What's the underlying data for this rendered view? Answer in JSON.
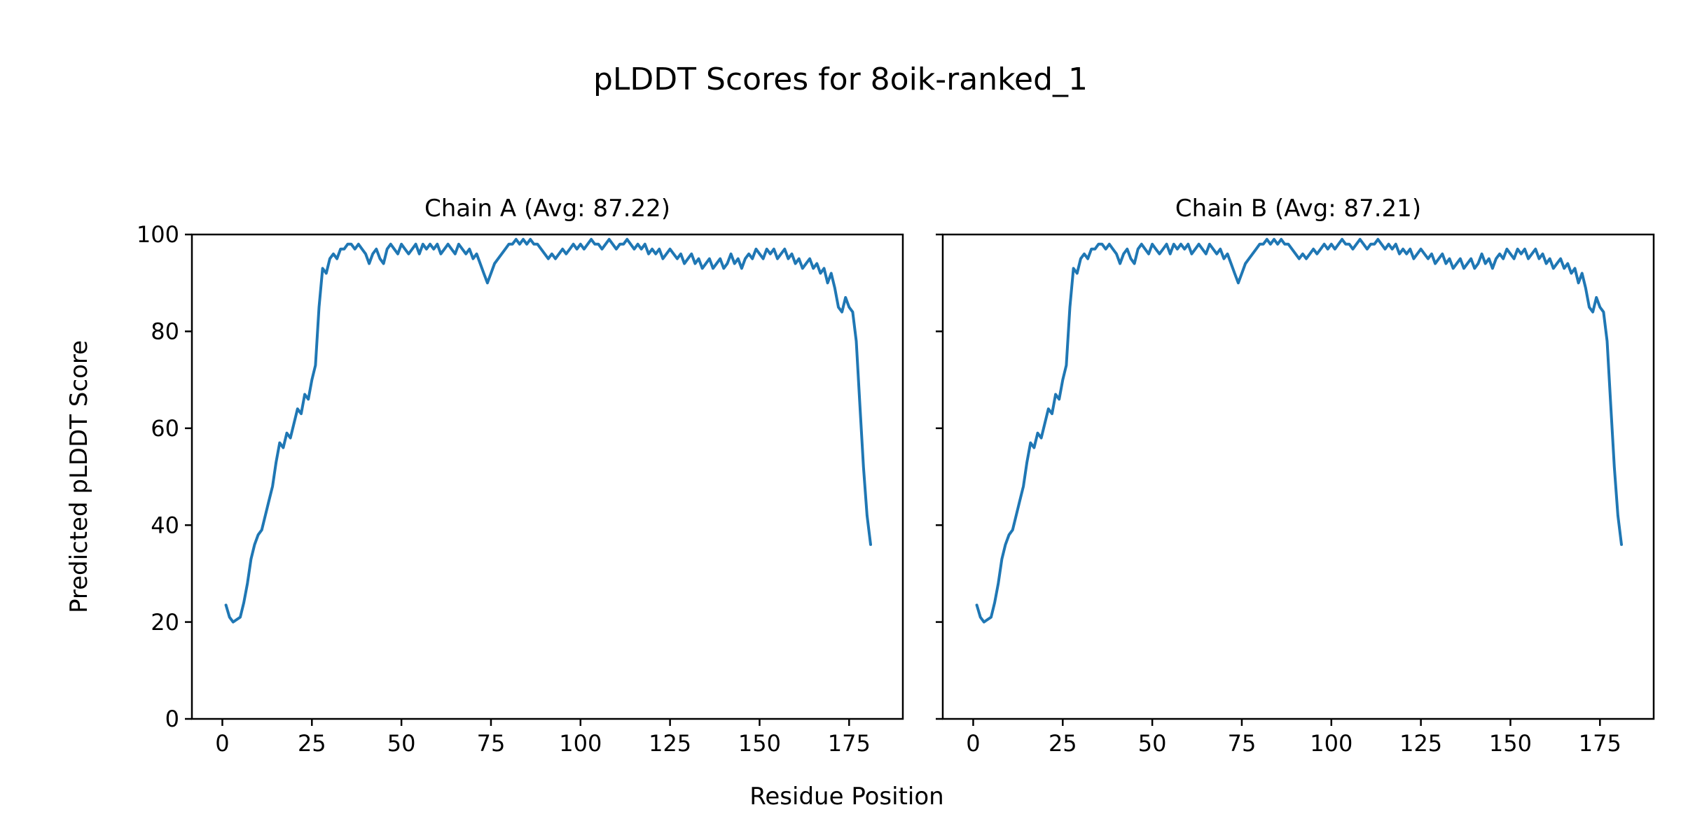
{
  "chart_data": {
    "type": "line",
    "title": "pLDDT Scores for 8oik-ranked_1",
    "xlabel": "Residue Position",
    "ylabel": "Predicted pLDDT Score",
    "xlim": [
      -8.5,
      190
    ],
    "ylim": [
      0,
      100
    ],
    "xticks": [
      0,
      25,
      50,
      75,
      100,
      125,
      150,
      175
    ],
    "yticks": [
      0,
      20,
      40,
      60,
      80,
      100
    ],
    "grid": false,
    "legend": "none",
    "line_color": "#1f77b4",
    "x_start": 1,
    "subplots": [
      {
        "title": "Chain A (Avg: 87.22)",
        "avg": 87.22,
        "show_ytick_labels": true,
        "values": [
          23.5,
          21,
          20,
          20.5,
          21,
          24,
          28,
          33,
          36,
          38,
          39,
          42,
          45,
          48,
          53,
          57,
          56,
          59,
          58,
          61,
          64,
          63,
          67,
          66,
          70,
          73,
          85,
          93,
          92,
          95,
          96,
          95,
          97,
          97,
          98,
          98,
          97,
          98,
          97,
          96,
          94,
          96,
          97,
          95,
          94,
          97,
          98,
          97,
          96,
          98,
          97,
          96,
          97,
          98,
          96,
          98,
          97,
          98,
          97,
          98,
          96,
          97,
          98,
          97,
          96,
          98,
          97,
          96,
          97,
          95,
          96,
          94,
          92,
          90,
          92,
          94,
          95,
          96,
          97,
          98,
          98,
          99,
          98,
          99,
          98,
          99,
          98,
          98,
          97,
          96,
          95,
          96,
          95,
          96,
          97,
          96,
          97,
          98,
          97,
          98,
          97,
          98,
          99,
          98,
          98,
          97,
          98,
          99,
          98,
          97,
          98,
          98,
          99,
          98,
          97,
          98,
          97,
          98,
          96,
          97,
          96,
          97,
          95,
          96,
          97,
          96,
          95,
          96,
          94,
          95,
          96,
          94,
          95,
          93,
          94,
          95,
          93,
          94,
          95,
          93,
          94,
          96,
          94,
          95,
          93,
          95,
          96,
          95,
          97,
          96,
          95,
          97,
          96,
          97,
          95,
          96,
          97,
          95,
          96,
          94,
          95,
          93,
          94,
          95,
          93,
          94,
          92,
          93,
          90,
          92,
          89,
          85,
          84,
          87,
          85,
          84,
          78,
          65,
          52,
          42,
          36
        ]
      },
      {
        "title": "Chain B (Avg: 87.21)",
        "avg": 87.21,
        "show_ytick_labels": false,
        "values": [
          23.5,
          21,
          20,
          20.5,
          21,
          24,
          28,
          33,
          36,
          38,
          39,
          42,
          45,
          48,
          53,
          57,
          56,
          59,
          58,
          61,
          64,
          63,
          67,
          66,
          70,
          73,
          85,
          93,
          92,
          95,
          96,
          95,
          97,
          97,
          98,
          98,
          97,
          98,
          97,
          96,
          94,
          96,
          97,
          95,
          94,
          97,
          98,
          97,
          96,
          98,
          97,
          96,
          97,
          98,
          96,
          98,
          97,
          98,
          97,
          98,
          96,
          97,
          98,
          97,
          96,
          98,
          97,
          96,
          97,
          95,
          96,
          94,
          92,
          90,
          92,
          94,
          95,
          96,
          97,
          98,
          98,
          99,
          98,
          99,
          98,
          99,
          98,
          98,
          97,
          96,
          95,
          96,
          95,
          96,
          97,
          96,
          97,
          98,
          97,
          98,
          97,
          98,
          99,
          98,
          98,
          97,
          98,
          99,
          98,
          97,
          98,
          98,
          99,
          98,
          97,
          98,
          97,
          98,
          96,
          97,
          96,
          97,
          95,
          96,
          97,
          96,
          95,
          96,
          94,
          95,
          96,
          94,
          95,
          93,
          94,
          95,
          93,
          94,
          95,
          93,
          94,
          96,
          94,
          95,
          93,
          95,
          96,
          95,
          97,
          96,
          95,
          97,
          96,
          97,
          95,
          96,
          97,
          95,
          96,
          94,
          95,
          93,
          94,
          95,
          93,
          94,
          92,
          93,
          90,
          92,
          89,
          85,
          84,
          87,
          85,
          84,
          78,
          65,
          52,
          42,
          36
        ]
      }
    ]
  }
}
